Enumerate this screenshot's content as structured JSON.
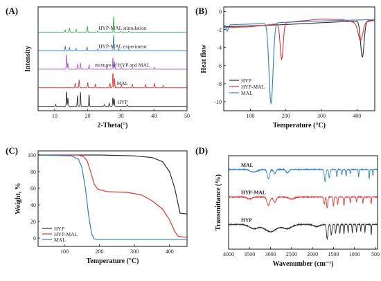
{
  "colors": {
    "black": "#2b2b2b",
    "red": "#e8322f",
    "blue": "#2a7fd4",
    "purple": "#b25adf",
    "green": "#2fb84f"
  },
  "chart_data": [
    {
      "panel": "(A)",
      "type": "line",
      "xlabel": "2-Theta(°)",
      "ylabel": "Intensity",
      "xlim": [
        5,
        50
      ],
      "xticks": [
        10,
        20,
        30,
        40,
        50
      ],
      "series": [
        {
          "name": "HYP",
          "color": "#2b2b2b",
          "offset": 0,
          "peaks": [
            [
              10.3,
              0.12
            ],
            [
              13.6,
              1.0
            ],
            [
              14.0,
              0.55
            ],
            [
              16.9,
              0.7
            ],
            [
              17.8,
              0.9
            ],
            [
              20.4,
              0.8
            ],
            [
              25.0,
              0.1
            ],
            [
              26.5,
              0.2
            ],
            [
              27.6,
              0.6
            ],
            [
              28.0,
              0.5
            ],
            [
              32.0,
              0.08
            ]
          ]
        },
        {
          "name": "MAL",
          "color": "#e8322f",
          "offset": 1,
          "peaks": [
            [
              16.2,
              0.3
            ],
            [
              17.4,
              0.5
            ],
            [
              20.0,
              0.35
            ],
            [
              22.3,
              0.25
            ],
            [
              26.7,
              0.3
            ],
            [
              27.6,
              1.0
            ],
            [
              28.1,
              0.6
            ],
            [
              30.2,
              0.2
            ],
            [
              33.5,
              0.25
            ],
            [
              37.5,
              0.2
            ],
            [
              40.2,
              0.3
            ],
            [
              42.8,
              0.15
            ]
          ]
        },
        {
          "name": "mixture of HYP and MAL",
          "color": "#b25adf",
          "offset": 2,
          "peaks": [
            [
              13.6,
              1.0
            ],
            [
              14.0,
              0.4
            ],
            [
              16.9,
              0.35
            ],
            [
              17.8,
              0.4
            ],
            [
              20.4,
              0.3
            ],
            [
              25.8,
              0.2
            ],
            [
              27.6,
              0.8
            ],
            [
              28.1,
              0.5
            ],
            [
              30.2,
              0.1
            ],
            [
              33.5,
              0.1
            ],
            [
              40.2,
              0.12
            ]
          ]
        },
        {
          "name": "HYP-MAL experiment",
          "color": "#2a7fd4",
          "offset": 3,
          "peaks": [
            [
              13.2,
              0.3
            ],
            [
              14.5,
              0.2
            ],
            [
              16.5,
              0.15
            ],
            [
              19.8,
              0.25
            ],
            [
              23.0,
              0.1
            ],
            [
              27.8,
              1.0
            ],
            [
              29.3,
              0.12
            ],
            [
              32.5,
              0.06
            ]
          ]
        },
        {
          "name": "HYP-MAL stimulation",
          "color": "#2fb84f",
          "offset": 4,
          "peaks": [
            [
              13.2,
              0.15
            ],
            [
              14.5,
              0.28
            ],
            [
              16.5,
              0.18
            ],
            [
              19.9,
              0.4
            ],
            [
              23.0,
              0.08
            ],
            [
              27.8,
              1.0
            ],
            [
              30.0,
              0.05
            ],
            [
              32.4,
              0.05
            ]
          ]
        }
      ]
    },
    {
      "panel": "(B)",
      "type": "line",
      "xlabel": "Temperature (°C)",
      "ylabel": "Heat flow",
      "xlim": [
        25,
        450
      ],
      "ylim": [
        -11,
        0.5
      ],
      "xticks": [
        100,
        200,
        300,
        400
      ],
      "yticks": [
        0,
        -2,
        -4,
        -6,
        -8,
        -10
      ],
      "legend": "bottom-left",
      "series": [
        {
          "name": "HYP",
          "color": "#2b2b2b",
          "baseline": [
            [
              25,
              -1.7
            ],
            [
              100,
              -1.6
            ],
            [
              200,
              -1.45
            ],
            [
              300,
              -1.25
            ],
            [
              380,
              -1.1
            ],
            [
              450,
              -1.0
            ]
          ],
          "dips": [
            [
              415,
              -4.0,
              7
            ]
          ]
        },
        {
          "name": "HYP-MAL",
          "color": "#e8322f",
          "baseline": [
            [
              25,
              -1.8
            ],
            [
              100,
              -1.7
            ],
            [
              170,
              -1.4
            ],
            [
              230,
              -1.1
            ],
            [
              300,
              -0.85
            ],
            [
              360,
              -0.9
            ],
            [
              400,
              -1.3
            ],
            [
              450,
              -1.0
            ]
          ],
          "dips": [
            [
              188,
              -4.0,
              6
            ],
            [
              410,
              -2.0,
              9
            ]
          ]
        },
        {
          "name": "MAL",
          "color": "#2a7fd4",
          "baseline": [
            [
              25,
              -1.5
            ],
            [
              100,
              -1.4
            ],
            [
              200,
              -1.2
            ],
            [
              300,
              -1.05
            ],
            [
              450,
              -0.9
            ]
          ],
          "dips": [
            [
              35,
              -0.7,
              4
            ],
            [
              158,
              -8.9,
              8
            ]
          ]
        }
      ]
    },
    {
      "panel": "(C)",
      "type": "line",
      "xlabel": "Temperature (°C)",
      "ylabel": "Weight, %",
      "xlim": [
        25,
        450
      ],
      "ylim": [
        -10,
        105
      ],
      "xticks": [
        100,
        200,
        300,
        400
      ],
      "yticks": [
        0,
        20,
        40,
        60,
        80,
        100
      ],
      "legend": "bottom-left",
      "series": [
        {
          "name": "HYP",
          "color": "#2b2b2b",
          "points": [
            [
              25,
              100
            ],
            [
              200,
              100
            ],
            [
              300,
              99
            ],
            [
              350,
              97
            ],
            [
              380,
              92
            ],
            [
              400,
              80
            ],
            [
              415,
              60
            ],
            [
              425,
              40
            ],
            [
              430,
              30
            ],
            [
              450,
              29
            ]
          ]
        },
        {
          "name": "HYP-MAL",
          "color": "#e8322f",
          "points": [
            [
              25,
              100
            ],
            [
              140,
              100
            ],
            [
              155,
              98
            ],
            [
              165,
              93
            ],
            [
              175,
              80
            ],
            [
              185,
              65
            ],
            [
              195,
              59
            ],
            [
              220,
              56
            ],
            [
              280,
              55
            ],
            [
              320,
              52
            ],
            [
              350,
              45
            ],
            [
              380,
              35
            ],
            [
              400,
              22
            ],
            [
              415,
              8
            ],
            [
              425,
              2
            ],
            [
              450,
              1
            ]
          ]
        },
        {
          "name": "MAL",
          "color": "#2a7fd4",
          "points": [
            [
              25,
              100
            ],
            [
              120,
              99
            ],
            [
              140,
              95
            ],
            [
              150,
              85
            ],
            [
              160,
              60
            ],
            [
              170,
              25
            ],
            [
              178,
              5
            ],
            [
              185,
              -1
            ],
            [
              200,
              -1.5
            ],
            [
              450,
              -1.5
            ]
          ]
        }
      ]
    },
    {
      "panel": "(D)",
      "type": "line",
      "xlabel": "Wavenumber (cm⁻¹)",
      "ylabel": "Transmittance (%)",
      "xlim": [
        4000,
        450
      ],
      "xticks": [
        4000,
        3500,
        3000,
        2500,
        2000,
        1500,
        1000,
        500
      ],
      "series": [
        {
          "name": "MAL",
          "color": "#2a7fd4",
          "offset": 2,
          "bands": [
            [
              3400,
              0.12,
              120
            ],
            [
              3050,
              0.45,
              40
            ],
            [
              2900,
              0.2,
              40
            ],
            [
              2600,
              0.15,
              50
            ],
            [
              1700,
              0.6,
              25
            ],
            [
              1600,
              0.4,
              20
            ],
            [
              1420,
              0.35,
              15
            ],
            [
              1300,
              0.25,
              15
            ],
            [
              1200,
              0.3,
              15
            ],
            [
              1100,
              0.2,
              12
            ],
            [
              900,
              0.35,
              12
            ],
            [
              650,
              0.45,
              12
            ],
            [
              560,
              0.3,
              10
            ]
          ]
        },
        {
          "name": "HYP-MAL",
          "color": "#e8322f",
          "offset": 1,
          "bands": [
            [
              3500,
              0.1,
              80
            ],
            [
              3050,
              0.4,
              50
            ],
            [
              2900,
              0.25,
              50
            ],
            [
              2500,
              0.1,
              100
            ],
            [
              1720,
              0.35,
              20
            ],
            [
              1650,
              0.55,
              20
            ],
            [
              1500,
              0.45,
              15
            ],
            [
              1400,
              0.35,
              15
            ],
            [
              1250,
              0.4,
              15
            ],
            [
              1100,
              0.3,
              12
            ],
            [
              950,
              0.25,
              12
            ],
            [
              800,
              0.3,
              12
            ],
            [
              600,
              0.35,
              10
            ]
          ]
        },
        {
          "name": "HYP",
          "color": "#2b2b2b",
          "offset": 0,
          "bands": [
            [
              3400,
              0.2,
              150
            ],
            [
              3000,
              0.35,
              200
            ],
            [
              2600,
              0.2,
              150
            ],
            [
              1900,
              0.1,
              100
            ],
            [
              1650,
              0.7,
              25
            ],
            [
              1550,
              0.5,
              20
            ],
            [
              1450,
              0.45,
              15
            ],
            [
              1350,
              0.45,
              15
            ],
            [
              1250,
              0.45,
              12
            ],
            [
              1150,
              0.4,
              12
            ],
            [
              1050,
              0.4,
              12
            ],
            [
              950,
              0.35,
              12
            ],
            [
              850,
              0.35,
              10
            ],
            [
              750,
              0.4,
              10
            ],
            [
              600,
              0.5,
              10
            ]
          ]
        }
      ]
    }
  ]
}
